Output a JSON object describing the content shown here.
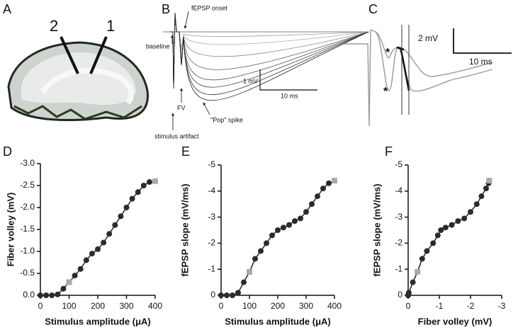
{
  "figure": {
    "panel_a": {
      "letter": "A",
      "electrode_labels": [
        "2",
        "1"
      ]
    },
    "panel_b": {
      "letter": "B",
      "onset": "fEPSP onset",
      "baseline": "baseline",
      "scale_v": "1 mV",
      "scale_t": "10 ms",
      "fv": "FV",
      "pop": "\"Pop\" spike",
      "artifact": "stimulus artifact"
    },
    "panel_c": {
      "letter": "C",
      "scale_v": "2 mV",
      "scale_t": "10 ms",
      "stars": [
        "*",
        "*"
      ]
    }
  },
  "chart_data": [
    {
      "type": "line",
      "panel_label": "D",
      "x_label": "Stimulus amplitude (μA)",
      "y_label": "Fiber volley (mV)",
      "x": [
        0,
        20,
        40,
        60,
        80,
        100,
        120,
        140,
        160,
        180,
        200,
        220,
        240,
        260,
        280,
        300,
        320,
        340,
        360,
        380,
        400
      ],
      "xlim": [
        0,
        400
      ],
      "xticks": [
        0,
        100,
        200,
        300,
        400
      ],
      "ylim": [
        0,
        -3
      ],
      "yticks": [
        {
          "value": 0,
          "label": "0.0"
        },
        -0.5,
        {
          "value": -1,
          "label": "-1.0"
        },
        -1.5,
        {
          "value": -2,
          "label": "-2.0"
        },
        -2.5,
        {
          "value": -3,
          "label": "-3.0"
        }
      ],
      "series": [
        {
          "color": "#222222",
          "values": [
            0,
            0,
            0,
            -0.02,
            -0.15,
            -0.3,
            -0.45,
            -0.6,
            -0.8,
            -0.95,
            -1.05,
            -1.2,
            -1.4,
            -1.6,
            -1.8,
            -2.0,
            -2.2,
            -2.35,
            -2.5,
            -2.58,
            -2.6
          ],
          "marker_colors": [
            "#2b2b2b",
            "#2b2b2b",
            "#2b2b2b",
            "#2b2b2b",
            "#2b2b2b",
            "#aaaaaa",
            "#2b2b2b",
            "#2b2b2b",
            "#2b2b2b",
            "#2b2b2b",
            "#2b2b2b",
            "#2b2b2b",
            "#2b2b2b",
            "#2b2b2b",
            "#2b2b2b",
            "#2b2b2b",
            "#2b2b2b",
            "#2b2b2b",
            "#2b2b2b",
            "#2b2b2b",
            "#aaaaaa"
          ],
          "marker_shapes": [
            "circle",
            "circle",
            "circle",
            "circle",
            "circle",
            "square",
            "circle",
            "circle",
            "circle",
            "circle",
            "circle",
            "circle",
            "circle",
            "circle",
            "circle",
            "circle",
            "circle",
            "circle",
            "circle",
            "circle",
            "square"
          ]
        }
      ]
    },
    {
      "type": "line",
      "panel_label": "E",
      "x_label": "Stimulus amplitude (μA)",
      "y_label": "fEPSP slope (mV/ms)",
      "x": [
        0,
        20,
        40,
        60,
        80,
        100,
        120,
        140,
        160,
        180,
        200,
        220,
        240,
        260,
        280,
        300,
        320,
        340,
        360,
        380,
        400
      ],
      "xlim": [
        0,
        400
      ],
      "xticks": [
        0,
        100,
        200,
        300,
        400
      ],
      "ylim": [
        0,
        -5
      ],
      "yticks": [
        0,
        -1,
        -2,
        -3,
        -4,
        -5
      ],
      "series": [
        {
          "color": "#222222",
          "values": [
            0,
            0,
            0,
            -0.1,
            -0.5,
            -0.9,
            -1.4,
            -1.7,
            -2.0,
            -2.3,
            -2.5,
            -2.6,
            -2.7,
            -2.85,
            -2.95,
            -3.2,
            -3.5,
            -3.8,
            -4.1,
            -4.3,
            -4.4
          ],
          "marker_colors": [
            "#2b2b2b",
            "#2b2b2b",
            "#2b2b2b",
            "#2b2b2b",
            "#2b2b2b",
            "#aaaaaa",
            "#2b2b2b",
            "#2b2b2b",
            "#2b2b2b",
            "#2b2b2b",
            "#2b2b2b",
            "#2b2b2b",
            "#2b2b2b",
            "#2b2b2b",
            "#2b2b2b",
            "#2b2b2b",
            "#2b2b2b",
            "#2b2b2b",
            "#2b2b2b",
            "#2b2b2b",
            "#aaaaaa"
          ],
          "marker_shapes": [
            "circle",
            "circle",
            "circle",
            "circle",
            "circle",
            "square",
            "circle",
            "circle",
            "circle",
            "circle",
            "circle",
            "circle",
            "circle",
            "circle",
            "circle",
            "circle",
            "circle",
            "circle",
            "circle",
            "circle",
            "square"
          ]
        }
      ]
    },
    {
      "type": "line",
      "panel_label": "F",
      "x_label": "Fiber volley (mV)",
      "y_label": "fEPSP slope (mV/ms)",
      "x": [
        0,
        0,
        0,
        -0.02,
        -0.15,
        -0.3,
        -0.45,
        -0.6,
        -0.8,
        -0.95,
        -1.05,
        -1.2,
        -1.4,
        -1.6,
        -1.8,
        -2.0,
        -2.2,
        -2.35,
        -2.5,
        -2.58,
        -2.6
      ],
      "xlim": [
        0,
        -3
      ],
      "xticks": [
        0,
        -1,
        -2,
        -3
      ],
      "ylim": [
        0,
        -5
      ],
      "yticks": [
        0,
        -1,
        -2,
        -3,
        -4,
        -5
      ],
      "series": [
        {
          "color": "#222222",
          "values": [
            0,
            0,
            0,
            -0.1,
            -0.5,
            -0.9,
            -1.4,
            -1.7,
            -2.0,
            -2.3,
            -2.5,
            -2.6,
            -2.7,
            -2.85,
            -2.95,
            -3.2,
            -3.5,
            -3.8,
            -4.1,
            -4.3,
            -4.4
          ],
          "marker_colors": [
            "#2b2b2b",
            "#2b2b2b",
            "#2b2b2b",
            "#2b2b2b",
            "#2b2b2b",
            "#aaaaaa",
            "#2b2b2b",
            "#2b2b2b",
            "#2b2b2b",
            "#2b2b2b",
            "#2b2b2b",
            "#2b2b2b",
            "#2b2b2b",
            "#2b2b2b",
            "#2b2b2b",
            "#2b2b2b",
            "#2b2b2b",
            "#2b2b2b",
            "#2b2b2b",
            "#2b2b2b",
            "#aaaaaa"
          ],
          "marker_shapes": [
            "circle",
            "circle",
            "circle",
            "circle",
            "circle",
            "square",
            "circle",
            "circle",
            "circle",
            "circle",
            "circle",
            "circle",
            "circle",
            "circle",
            "circle",
            "circle",
            "circle",
            "circle",
            "circle",
            "circle",
            "square"
          ]
        }
      ]
    }
  ]
}
